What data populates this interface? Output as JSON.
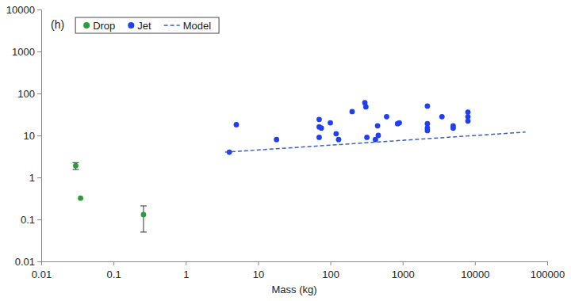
{
  "chart_data": {
    "type": "scatter",
    "title": "(h)",
    "x_label": "Mass (kg)",
    "log": true,
    "grid": false,
    "legend": "upper left",
    "xlim": [
      0.01,
      100000
    ],
    "xticks": [
      0.01,
      0.1,
      1,
      10,
      100,
      1000,
      10000,
      100000
    ],
    "ylim": [
      0.01,
      10000
    ],
    "yticks": [
      0.01,
      0.1,
      1,
      10,
      100,
      1000,
      10000
    ],
    "series": [
      {
        "name": "Drop",
        "type": "scatter",
        "marker": "circle",
        "color": "#2e9b3c",
        "x": [
          0.03,
          0.035,
          0.26
        ],
        "values": [
          1.9,
          0.32,
          0.13
        ],
        "errors": [
          0.35,
          null,
          0.08
        ]
      },
      {
        "name": "Jet",
        "type": "scatter",
        "marker": "circle",
        "color": "#1f3ff0",
        "x": [
          4,
          5,
          18,
          70,
          70,
          70,
          75,
          100,
          120,
          130,
          200,
          300,
          310,
          320,
          420,
          450,
          460,
          600,
          850,
          900,
          2200,
          2200,
          2200,
          2200,
          3500,
          5000,
          5000,
          8000,
          8000,
          8000
        ],
        "values": [
          4,
          18,
          8,
          24,
          16,
          9,
          15,
          20,
          11,
          8,
          37,
          60,
          48,
          9,
          8,
          17,
          10,
          28,
          19,
          20,
          50,
          19,
          13,
          15,
          28,
          17,
          15,
          36,
          28,
          22
        ]
      },
      {
        "name": "Model",
        "type": "line",
        "line_style": "dashed",
        "color": "#3a5fcd",
        "x": [
          3.5,
          50000
        ],
        "values": [
          4,
          12
        ]
      }
    ]
  }
}
